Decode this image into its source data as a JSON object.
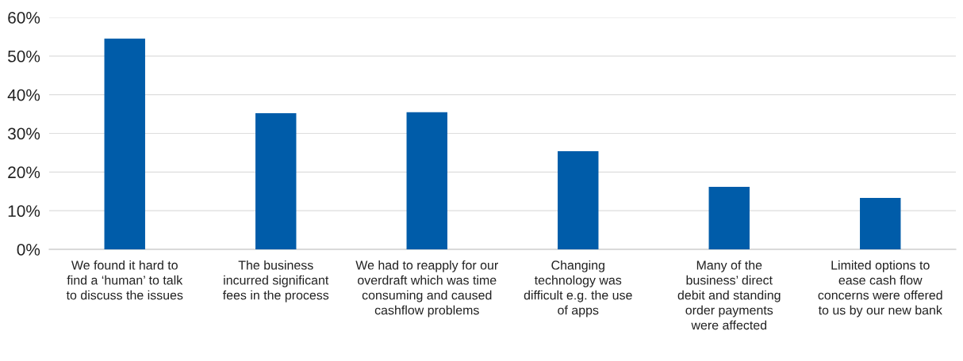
{
  "chart_data": {
    "type": "bar",
    "categories": [
      "We found it hard to\nfind a ‘human’ to talk\nto discuss the issues",
      "The business\nincurred significant\nfees in the process",
      "We had to reapply for our\noverdraft which was time\nconsuming and caused\ncashflow problems",
      "Changing\ntechnology was\ndifficult e.g. the use\nof apps",
      "Many of the\nbusiness’ direct\ndebit and standing\norder payments\nwere affected",
      "Limited options to\nease cash flow\nconcerns were offered\nto us by our new bank"
    ],
    "values": [
      54.5,
      35.2,
      35.5,
      25.4,
      16.2,
      13.3
    ],
    "color": "#005ca9",
    "ylim": [
      0,
      60
    ],
    "yticks": [
      {
        "value": 0,
        "label": "0%"
      },
      {
        "value": 10,
        "label": "10%"
      },
      {
        "value": 20,
        "label": "20%"
      },
      {
        "value": 30,
        "label": "30%"
      },
      {
        "value": 40,
        "label": "40%"
      },
      {
        "value": 50,
        "label": "50%"
      },
      {
        "value": 60,
        "label": "60%"
      }
    ],
    "grid": "y"
  }
}
